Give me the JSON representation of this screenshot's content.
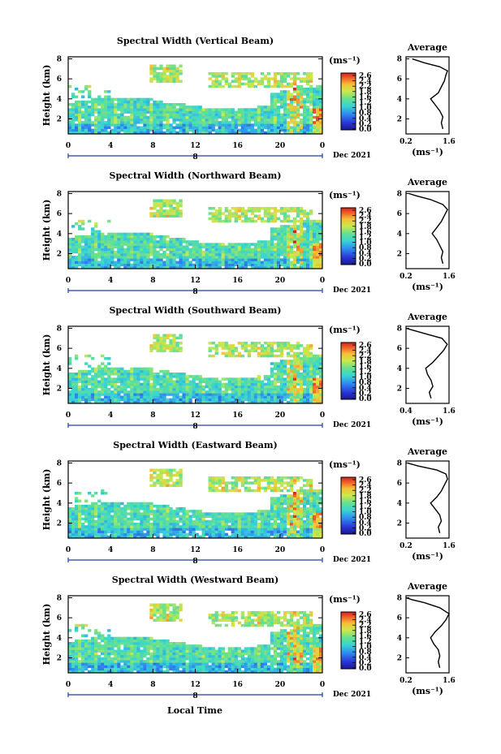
{
  "figure": {
    "date_label": "Dec 2021",
    "bottom_xlabel": "Local Time",
    "colorbar_unit": "(ms⁻¹)",
    "average_title": "Average",
    "average_unit": "(ms⁻¹)"
  },
  "chart_data": [
    {
      "type": "heatmap",
      "title": "Spectral Width (Vertical Beam)",
      "xlabel": "",
      "ylabel": "Height (km)",
      "x_ticks": [
        "0",
        "4",
        "8",
        "12",
        "16",
        "20",
        "0"
      ],
      "y_ticks": [
        "2",
        "4",
        "6",
        "8"
      ],
      "ylim": [
        0.5,
        8.2
      ],
      "xlim": [
        0,
        24
      ],
      "day_marker": "8",
      "colorbar_ticks": [
        "2.6",
        "2.4",
        "2.2",
        "1.8",
        "1.6",
        "1.2",
        "1.0",
        "0.8",
        "0.4",
        "0.2",
        "0.0"
      ],
      "colorbar_range": [
        0.0,
        2.8
      ],
      "average": {
        "x_ticks": [
          "0.2",
          "1.6"
        ],
        "y_ticks": [
          "2",
          "4",
          "6",
          "8"
        ],
        "profile": [
          [
            1.4,
            1.0
          ],
          [
            1.35,
            1.6
          ],
          [
            1.4,
            2.2
          ],
          [
            1.3,
            2.8
          ],
          [
            1.15,
            3.4
          ],
          [
            1.0,
            4.0
          ],
          [
            1.25,
            4.6
          ],
          [
            1.35,
            5.2
          ],
          [
            1.45,
            5.8
          ],
          [
            1.5,
            6.4
          ],
          [
            1.55,
            6.8
          ],
          [
            1.3,
            7.2
          ],
          [
            0.8,
            7.6
          ],
          [
            0.4,
            8.0
          ]
        ]
      }
    },
    {
      "type": "heatmap",
      "title": "Spectral Width (Northward Beam)",
      "xlabel": "",
      "ylabel": "Height (km)",
      "x_ticks": [
        "0",
        "4",
        "8",
        "12",
        "16",
        "20",
        "0"
      ],
      "y_ticks": [
        "2",
        "4",
        "6",
        "8"
      ],
      "ylim": [
        0.5,
        8.2
      ],
      "xlim": [
        0,
        24
      ],
      "day_marker": "8",
      "colorbar_ticks": [
        "2.6",
        "2.4",
        "2.2",
        "1.8",
        "1.6",
        "1.2",
        "1.0",
        "0.8",
        "0.4",
        "0.2",
        "0.0"
      ],
      "colorbar_range": [
        0.0,
        2.8
      ],
      "average": {
        "x_ticks": [
          "0.2",
          "1.6"
        ],
        "y_ticks": [
          "2",
          "4",
          "6",
          "8"
        ],
        "profile": [
          [
            1.4,
            1.0
          ],
          [
            1.35,
            1.6
          ],
          [
            1.4,
            2.2
          ],
          [
            1.3,
            2.8
          ],
          [
            1.2,
            3.4
          ],
          [
            1.05,
            4.0
          ],
          [
            1.2,
            4.6
          ],
          [
            1.35,
            5.2
          ],
          [
            1.45,
            5.8
          ],
          [
            1.55,
            6.4
          ],
          [
            1.4,
            6.9
          ],
          [
            1.0,
            7.4
          ],
          [
            0.5,
            7.8
          ],
          [
            0.3,
            8.0
          ]
        ]
      }
    },
    {
      "type": "heatmap",
      "title": "Spectral Width (Southward Beam)",
      "xlabel": "",
      "ylabel": "Height (km)",
      "x_ticks": [
        "0",
        "4",
        "8",
        "12",
        "16",
        "20",
        "0"
      ],
      "y_ticks": [
        "2",
        "4",
        "6",
        "8"
      ],
      "ylim": [
        0.5,
        8.2
      ],
      "xlim": [
        0,
        24
      ],
      "day_marker": "8",
      "colorbar_ticks": [
        "2.6",
        "2.4",
        "2.2",
        "1.8",
        "1.6",
        "1.2",
        "1.0",
        "0.8",
        "0.4",
        "0.2",
        "0.0"
      ],
      "colorbar_range": [
        0.0,
        2.8
      ],
      "average": {
        "x_ticks": [
          "0.4",
          "1.6"
        ],
        "y_ticks": [
          "2",
          "4",
          "6",
          "8"
        ],
        "profile": [
          [
            1.1,
            1.0
          ],
          [
            1.05,
            1.6
          ],
          [
            1.15,
            2.2
          ],
          [
            1.1,
            2.8
          ],
          [
            1.0,
            3.4
          ],
          [
            0.95,
            4.0
          ],
          [
            1.15,
            4.6
          ],
          [
            1.3,
            5.2
          ],
          [
            1.45,
            5.8
          ],
          [
            1.55,
            6.4
          ],
          [
            1.4,
            7.0
          ],
          [
            1.0,
            7.4
          ],
          [
            0.6,
            7.8
          ],
          [
            0.4,
            8.0
          ]
        ]
      }
    },
    {
      "type": "heatmap",
      "title": "Spectral Width (Eastward Beam)",
      "xlabel": "",
      "ylabel": "Height (km)",
      "x_ticks": [
        "0",
        "4",
        "8",
        "12",
        "16",
        "20",
        "0"
      ],
      "y_ticks": [
        "2",
        "4",
        "6",
        "8"
      ],
      "ylim": [
        0.5,
        8.2
      ],
      "xlim": [
        0,
        24
      ],
      "day_marker": "8",
      "colorbar_ticks": [
        "2.6",
        "2.4",
        "2.2",
        "1.8",
        "1.6",
        "1.2",
        "1.0",
        "0.8",
        "0.4",
        "0.2",
        "0.0"
      ],
      "colorbar_range": [
        0.0,
        2.8
      ],
      "average": {
        "x_ticks": [
          "0.2",
          "1.6"
        ],
        "y_ticks": [
          "2",
          "4",
          "6",
          "8"
        ],
        "profile": [
          [
            1.3,
            1.0
          ],
          [
            1.25,
            1.6
          ],
          [
            1.35,
            2.2
          ],
          [
            1.3,
            2.8
          ],
          [
            1.15,
            3.4
          ],
          [
            1.0,
            4.0
          ],
          [
            1.2,
            4.6
          ],
          [
            1.35,
            5.2
          ],
          [
            1.45,
            5.8
          ],
          [
            1.55,
            6.4
          ],
          [
            1.5,
            6.9
          ],
          [
            1.2,
            7.3
          ],
          [
            0.6,
            7.7
          ],
          [
            0.25,
            8.0
          ]
        ]
      }
    },
    {
      "type": "heatmap",
      "title": "Spectral Width (Westward Beam)",
      "xlabel": "Local Time",
      "ylabel": "Height (km)",
      "x_ticks": [
        "0",
        "4",
        "8",
        "12",
        "16",
        "20",
        "0"
      ],
      "y_ticks": [
        "2",
        "4",
        "6",
        "8"
      ],
      "ylim": [
        0.5,
        8.2
      ],
      "xlim": [
        0,
        24
      ],
      "day_marker": "8",
      "colorbar_ticks": [
        "2.6",
        "2.4",
        "2.2",
        "1.8",
        "1.6",
        "1.2",
        "1.0",
        "0.8",
        "0.4",
        "0.2",
        "0.0"
      ],
      "colorbar_range": [
        0.0,
        2.8
      ],
      "average": {
        "x_ticks": [
          "0.2",
          "1.6"
        ],
        "y_ticks": [
          "2",
          "4",
          "6",
          "8"
        ],
        "profile": [
          [
            1.3,
            1.0
          ],
          [
            1.25,
            1.6
          ],
          [
            1.3,
            2.2
          ],
          [
            1.25,
            2.8
          ],
          [
            1.1,
            3.4
          ],
          [
            1.0,
            4.0
          ],
          [
            1.15,
            4.6
          ],
          [
            1.35,
            5.2
          ],
          [
            1.5,
            5.8
          ],
          [
            1.6,
            6.4
          ],
          [
            1.3,
            7.0
          ],
          [
            0.8,
            7.5
          ],
          [
            0.4,
            7.8
          ],
          [
            0.2,
            8.0
          ]
        ]
      }
    }
  ]
}
